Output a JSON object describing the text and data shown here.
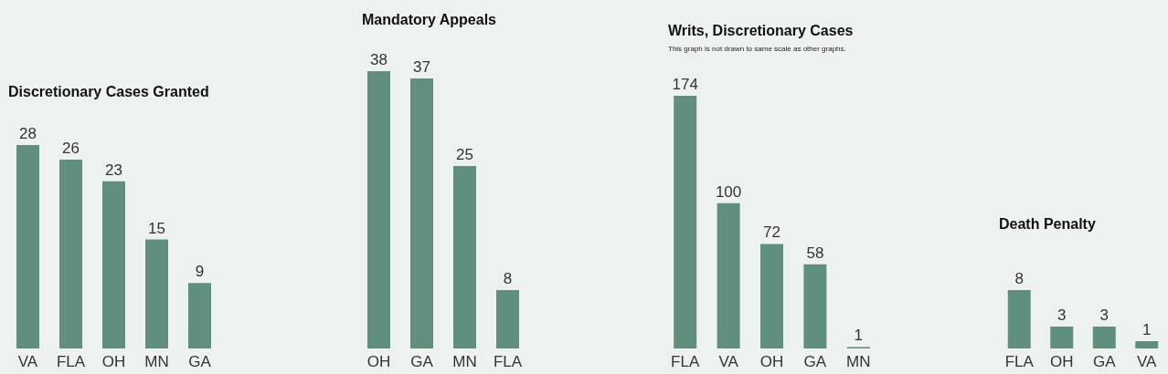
{
  "chart_data": [
    {
      "type": "bar",
      "title": "Discretionary Cases Granted",
      "categories": [
        "VA",
        "FLA",
        "OH",
        "MN",
        "GA"
      ],
      "values": [
        28,
        26,
        23,
        15,
        9
      ],
      "color": "#608f7e",
      "data_labels": true
    },
    {
      "type": "bar",
      "title": "Mandatory Appeals",
      "categories": [
        "OH",
        "GA",
        "MN",
        "FLA"
      ],
      "values": [
        38,
        37,
        25,
        8
      ],
      "color": "#608f7e",
      "data_labels": true
    },
    {
      "type": "bar",
      "title": "Writs, Discretionary Cases",
      "subtitle": "This graph is not drawn to same scale as other graphs.",
      "categories": [
        "FLA",
        "VA",
        "OH",
        "GA",
        "MN"
      ],
      "values": [
        174,
        100,
        72,
        58,
        1
      ],
      "color": "#608f7e",
      "data_labels": true
    },
    {
      "type": "bar",
      "title": "Death Penalty",
      "categories": [
        "FLA",
        "OH",
        "GA",
        "VA"
      ],
      "values": [
        8,
        3,
        3,
        1
      ],
      "color": "#608f7e",
      "data_labels": true
    }
  ]
}
